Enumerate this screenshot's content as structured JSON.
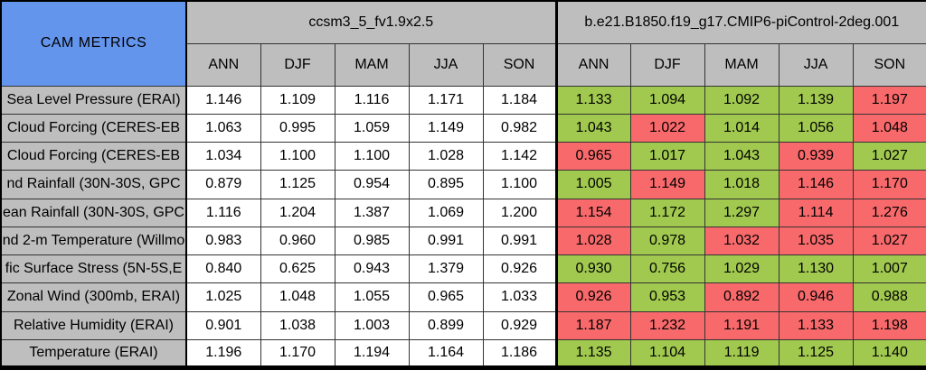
{
  "title": "CAM METRICS",
  "header": {
    "model1": "ccsm3_5_fv1.9x2.5",
    "model2": "b.e21.B1850.f19_g17.CMIP6-piControl-2deg.001",
    "seasons": [
      "ANN",
      "DJF",
      "MAM",
      "JJA",
      "SON"
    ]
  },
  "colors": {
    "title_bg": "#6495ED",
    "header_bg": "#BEBEBE",
    "label_bg": "#BEBEBE",
    "good_green": "#A1C94F",
    "bad_red": "#F8696B"
  },
  "chart_data": {
    "type": "table",
    "title": "CAM METRICS",
    "column_groups": [
      "ccsm3_5_fv1.9x2.5",
      "b.e21.B1850.f19_g17.CMIP6-piControl-2deg.001"
    ],
    "columns": [
      "ANN",
      "DJF",
      "MAM",
      "JJA",
      "SON"
    ],
    "rows": [
      {
        "label": "Sea Level Pressure (ERAI)",
        "model1_values": [
          "1.146",
          "1.109",
          "1.116",
          "1.171",
          "1.184"
        ],
        "model2_values": [
          "1.133",
          "1.094",
          "1.092",
          "1.139",
          "1.197"
        ],
        "model2_cell_colors": [
          "green",
          "green",
          "green",
          "green",
          "red"
        ]
      },
      {
        "label": "Cloud Forcing (CERES-EB",
        "model1_values": [
          "1.063",
          "0.995",
          "1.059",
          "1.149",
          "0.982"
        ],
        "model2_values": [
          "1.043",
          "1.022",
          "1.014",
          "1.056",
          "1.048"
        ],
        "model2_cell_colors": [
          "green",
          "red",
          "green",
          "green",
          "red"
        ]
      },
      {
        "label": "Cloud Forcing (CERES-EB",
        "model1_values": [
          "1.034",
          "1.100",
          "1.100",
          "1.028",
          "1.142"
        ],
        "model2_values": [
          "0.965",
          "1.017",
          "1.043",
          "0.939",
          "1.027"
        ],
        "model2_cell_colors": [
          "red",
          "green",
          "green",
          "red",
          "green"
        ]
      },
      {
        "label": "nd Rainfall (30N-30S, GPC",
        "model1_values": [
          "0.879",
          "1.125",
          "0.954",
          "0.895",
          "1.100"
        ],
        "model2_values": [
          "1.005",
          "1.149",
          "1.018",
          "1.146",
          "1.170"
        ],
        "model2_cell_colors": [
          "green",
          "red",
          "green",
          "red",
          "red"
        ]
      },
      {
        "label": "ean Rainfall (30N-30S, GPC",
        "model1_values": [
          "1.116",
          "1.204",
          "1.387",
          "1.069",
          "1.200"
        ],
        "model2_values": [
          "1.154",
          "1.172",
          "1.297",
          "1.114",
          "1.276"
        ],
        "model2_cell_colors": [
          "red",
          "green",
          "green",
          "red",
          "red"
        ]
      },
      {
        "label": "nd 2-m Temperature (Willmo",
        "model1_values": [
          "0.983",
          "0.960",
          "0.985",
          "0.991",
          "0.991"
        ],
        "model2_values": [
          "1.028",
          "0.978",
          "1.032",
          "1.035",
          "1.027"
        ],
        "model2_cell_colors": [
          "red",
          "green",
          "red",
          "red",
          "red"
        ]
      },
      {
        "label": "fic Surface Stress (5N-5S,E",
        "model1_values": [
          "0.840",
          "0.625",
          "0.943",
          "1.379",
          "0.926"
        ],
        "model2_values": [
          "0.930",
          "0.756",
          "1.029",
          "1.130",
          "1.007"
        ],
        "model2_cell_colors": [
          "green",
          "green",
          "green",
          "green",
          "green"
        ]
      },
      {
        "label": "Zonal Wind (300mb, ERAI)",
        "model1_values": [
          "1.025",
          "1.048",
          "1.055",
          "0.965",
          "1.033"
        ],
        "model2_values": [
          "0.926",
          "0.953",
          "0.892",
          "0.946",
          "0.988"
        ],
        "model2_cell_colors": [
          "red",
          "green",
          "red",
          "red",
          "green"
        ]
      },
      {
        "label": "Relative Humidity (ERAI)",
        "model1_values": [
          "0.901",
          "1.038",
          "1.003",
          "0.899",
          "0.929"
        ],
        "model2_values": [
          "1.187",
          "1.232",
          "1.191",
          "1.133",
          "1.198"
        ],
        "model2_cell_colors": [
          "red",
          "red",
          "red",
          "red",
          "red"
        ]
      },
      {
        "label": "Temperature (ERAI)",
        "model1_values": [
          "1.196",
          "1.170",
          "1.194",
          "1.164",
          "1.186"
        ],
        "model2_values": [
          "1.135",
          "1.104",
          "1.119",
          "1.125",
          "1.140"
        ],
        "model2_cell_colors": [
          "green",
          "green",
          "green",
          "green",
          "green"
        ]
      }
    ]
  }
}
